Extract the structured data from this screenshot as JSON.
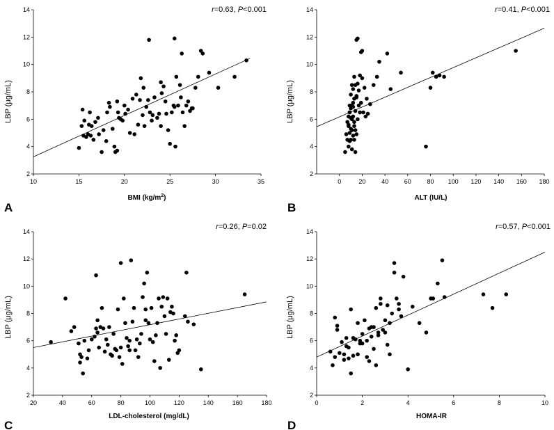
{
  "figure_title": "",
  "chart_data": [
    {
      "type": "scatter",
      "id": "A",
      "panel_label": "A",
      "xlabel": "BMI (kg/m",
      "xlabel_sup": "2",
      "xlabel_tail": ")",
      "ylabel": "LBP (μg/mL)",
      "xlim": [
        10,
        35
      ],
      "ylim": [
        2,
        14
      ],
      "xticks": [
        10,
        15,
        20,
        25,
        30,
        35
      ],
      "yticks": [
        2,
        4,
        6,
        8,
        10,
        12,
        14
      ],
      "stat": {
        "r_label": "r",
        "r_text": "=0.63, ",
        "p_label": "P",
        "p_text": "<0.001"
      },
      "regression": {
        "x": [
          10,
          33.8
        ],
        "y": [
          3.25,
          10.45
        ]
      },
      "x": [
        15.0,
        15.3,
        15.4,
        15.5,
        15.6,
        15.8,
        16.0,
        16.1,
        16.2,
        16.4,
        16.6,
        16.8,
        17.1,
        17.2,
        17.5,
        17.7,
        18.0,
        18.1,
        18.3,
        18.4,
        18.7,
        18.9,
        19.0,
        19.2,
        19.3,
        19.4,
        19.6,
        19.8,
        20.0,
        20.1,
        20.4,
        20.6,
        20.9,
        21.1,
        21.3,
        21.5,
        21.7,
        22.0,
        22.1,
        22.2,
        22.4,
        22.6,
        22.8,
        23.0,
        23.1,
        23.3,
        23.6,
        23.8,
        24.0,
        24.1,
        24.3,
        24.5,
        24.6,
        24.8,
        25.0,
        25.2,
        25.4,
        25.5,
        25.7,
        25.9,
        26.1,
        26.2,
        26.4,
        26.6,
        26.8,
        27.0,
        27.2,
        27.4,
        27.5,
        27.8,
        28.1,
        28.4,
        28.6,
        29.3,
        30.3,
        32.1,
        33.4,
        22.7,
        25.5,
        26.3,
        19.2,
        24.0,
        25.6,
        21.8,
        16.3
      ],
      "y": [
        3.9,
        5.5,
        6.7,
        4.8,
        5.9,
        4.7,
        4.9,
        5.6,
        6.5,
        5.5,
        4.5,
        5.8,
        6.1,
        4.9,
        3.6,
        5.2,
        4.4,
        6.5,
        7.2,
        6.9,
        5.3,
        4.0,
        3.6,
        7.3,
        6.5,
        6.1,
        6.0,
        5.9,
        7.0,
        6.4,
        6.7,
        5.0,
        7.5,
        4.9,
        7.8,
        5.6,
        7.4,
        6.3,
        8.3,
        5.5,
        6.9,
        7.4,
        6.5,
        5.9,
        6.3,
        7.6,
        6.1,
        6.4,
        5.5,
        7.9,
        8.4,
        7.3,
        6.4,
        5.2,
        4.2,
        6.5,
        7.0,
        6.9,
        9.1,
        7.0,
        8.5,
        7.6,
        6.5,
        5.5,
        7.0,
        7.3,
        6.6,
        6.8,
        6.8,
        8.3,
        9.1,
        11.0,
        10.8,
        9.4,
        8.3,
        9.1,
        10.3,
        11.8,
        11.9,
        10.8,
        3.7,
        8.7,
        4.0,
        9.0,
        4.8
      ]
    },
    {
      "type": "scatter",
      "id": "B",
      "panel_label": "B",
      "xlabel": "ALT (IU/L)",
      "ylabel": "LBP (μg/mL)",
      "xlim": [
        -20,
        180
      ],
      "ylim": [
        2,
        14
      ],
      "xticks": [
        0,
        20,
        40,
        60,
        80,
        100,
        120,
        140,
        160,
        180
      ],
      "yticks": [
        2,
        4,
        6,
        8,
        10,
        12,
        14
      ],
      "stat": {
        "r_label": "r",
        "r_text": "=0.41, ",
        "p_label": "P",
        "p_text": "<0.001"
      },
      "regression": {
        "x": [
          -20,
          180
        ],
        "y": [
          5.45,
          12.65
        ]
      },
      "x": [
        5,
        6,
        7,
        7,
        8,
        8,
        8,
        9,
        9,
        9,
        9,
        10,
        10,
        10,
        10,
        10,
        11,
        11,
        11,
        11,
        11,
        12,
        12,
        12,
        12,
        13,
        13,
        13,
        13,
        14,
        14,
        14,
        15,
        15,
        15,
        16,
        16,
        16,
        17,
        17,
        18,
        18,
        19,
        19,
        20,
        20,
        21,
        22,
        23,
        24,
        25,
        27,
        30,
        33,
        35,
        42,
        45,
        54,
        80,
        82,
        85,
        88,
        92,
        155,
        76,
        14,
        13,
        9,
        8,
        12,
        15
      ],
      "y": [
        3.6,
        4.9,
        5.8,
        4.5,
        6.2,
        5.5,
        4.0,
        7.0,
        6.5,
        5.0,
        4.4,
        7.8,
        6.8,
        6.1,
        5.3,
        4.5,
        8.5,
        7.0,
        6.0,
        5.2,
        3.8,
        8.2,
        7.2,
        6.2,
        4.8,
        9.1,
        7.5,
        5.5,
        4.5,
        8.5,
        6.6,
        5.2,
        11.8,
        7.6,
        4.9,
        11.9,
        8.6,
        6.0,
        8.1,
        7.0,
        9.2,
        6.5,
        10.9,
        7.2,
        9.0,
        11.0,
        6.5,
        8.3,
        6.2,
        7.5,
        6.4,
        7.1,
        8.5,
        9.1,
        10.2,
        10.8,
        8.2,
        9.4,
        8.3,
        9.4,
        9.1,
        9.2,
        9.1,
        11.0,
        4.0,
        3.6,
        5.8,
        6.5,
        5.6,
        6.9,
        7.7
      ]
    },
    {
      "type": "scatter",
      "id": "C",
      "panel_label": "C",
      "xlabel": "LDL-cholesterol (mg/dL)",
      "ylabel": "LBP (μg/mL)",
      "xlim": [
        20,
        180
      ],
      "ylim": [
        2,
        14
      ],
      "xticks": [
        20,
        40,
        60,
        80,
        100,
        120,
        140,
        160,
        180
      ],
      "yticks": [
        2,
        4,
        6,
        8,
        10,
        12,
        14
      ],
      "stat": {
        "r_label": "r",
        "r_text": "=0.26, ",
        "p_label": "P",
        "p_text": "=0.02"
      },
      "regression": {
        "x": [
          20,
          180
        ],
        "y": [
          5.5,
          8.85
        ]
      },
      "x": [
        32,
        42,
        46,
        48,
        51,
        52,
        53,
        54,
        55,
        57,
        58,
        60,
        62,
        63,
        64,
        65,
        66,
        67,
        68,
        69,
        70,
        71,
        72,
        73,
        74,
        75,
        76,
        77,
        78,
        79,
        80,
        81,
        82,
        83,
        84,
        85,
        86,
        87,
        88,
        89,
        90,
        91,
        92,
        93,
        94,
        95,
        96,
        97,
        98,
        99,
        100,
        101,
        102,
        103,
        104,
        105,
        106,
        107,
        108,
        109,
        110,
        111,
        112,
        113,
        114,
        115,
        116,
        117,
        118,
        119,
        120,
        124,
        125,
        126,
        130,
        135,
        165,
        63,
        80,
        86,
        97,
        52,
        64
      ],
      "y": [
        5.9,
        9.1,
        6.7,
        7.0,
        5.8,
        4.4,
        4.8,
        3.6,
        6.0,
        4.7,
        5.3,
        6.1,
        6.3,
        10.8,
        6.6,
        5.5,
        7.0,
        8.4,
        6.9,
        5.2,
        6.1,
        5.7,
        7.0,
        5.0,
        4.9,
        6.5,
        5.4,
        5.3,
        8.3,
        4.8,
        11.7,
        4.3,
        9.1,
        7.3,
        6.2,
        5.6,
        5.3,
        11.9,
        7.4,
        8.4,
        5.3,
        6.1,
        4.8,
        5.8,
        6.5,
        9.2,
        10.2,
        8.3,
        11.0,
        7.3,
        6.1,
        8.4,
        5.9,
        4.5,
        6.4,
        7.3,
        9.1,
        4.0,
        8.5,
        9.2,
        7.8,
        6.5,
        9.1,
        4.6,
        8.1,
        8.5,
        8.0,
        6.0,
        6.4,
        5.1,
        5.3,
        7.8,
        11.0,
        7.4,
        7.2,
        3.9,
        9.4,
        6.9,
        5.5,
        6.0,
        7.5,
        5.0,
        7.5
      ]
    },
    {
      "type": "scatter",
      "id": "D",
      "panel_label": "D",
      "xlabel": "HOMA-IR",
      "ylabel": "LBP (μg/mL)",
      "xlim": [
        0,
        10
      ],
      "ylim": [
        2,
        14
      ],
      "xticks": [
        0,
        2,
        4,
        6,
        8,
        10
      ],
      "yticks": [
        2,
        4,
        6,
        8,
        10,
        12,
        14
      ],
      "stat": {
        "r_label": "r",
        "r_text": "=0.57, ",
        "p_label": "P",
        "p_text": "<0.001"
      },
      "regression": {
        "x": [
          0,
          10
        ],
        "y": [
          4.8,
          12.5
        ]
      },
      "x": [
        0.6,
        0.7,
        0.8,
        0.9,
        1.0,
        1.1,
        1.2,
        1.3,
        1.4,
        1.5,
        1.6,
        1.7,
        1.8,
        1.9,
        2.0,
        2.1,
        2.2,
        2.3,
        2.4,
        2.5,
        2.6,
        2.7,
        2.8,
        2.9,
        3.0,
        3.1,
        3.2,
        3.3,
        3.4,
        3.5,
        3.6,
        3.7,
        3.8,
        4.0,
        4.2,
        4.5,
        4.8,
        5.0,
        5.1,
        5.3,
        5.5,
        5.6,
        7.3,
        7.7,
        8.3,
        0.8,
        1.2,
        1.5,
        1.8,
        2.2,
        2.6,
        3.0,
        3.4,
        1.4,
        2.0,
        2.4,
        2.8,
        3.2,
        1.6,
        2.5,
        3.1,
        3.6,
        0.9,
        1.3,
        1.9,
        2.3,
        2.7
      ],
      "y": [
        5.2,
        4.2,
        7.7,
        6.8,
        5.1,
        5.9,
        5.0,
        5.6,
        4.7,
        8.3,
        6.2,
        6.1,
        7.3,
        5.8,
        6.5,
        7.5,
        6.0,
        6.9,
        7.0,
        5.4,
        8.4,
        6.6,
        8.7,
        6.8,
        7.5,
        8.6,
        5.0,
        8.0,
        11.7,
        9.1,
        8.7,
        7.8,
        10.7,
        3.9,
        8.5,
        7.3,
        6.6,
        9.1,
        9.1,
        10.2,
        11.9,
        9.2,
        9.4,
        8.4,
        9.4,
        4.8,
        4.6,
        3.6,
        5.0,
        4.8,
        4.2,
        6.6,
        11.0,
        5.5,
        5.8,
        6.3,
        9.1,
        7.3,
        4.9,
        7.0,
        5.7,
        8.3,
        7.1,
        6.2,
        6.0,
        4.5,
        6.4
      ]
    }
  ]
}
